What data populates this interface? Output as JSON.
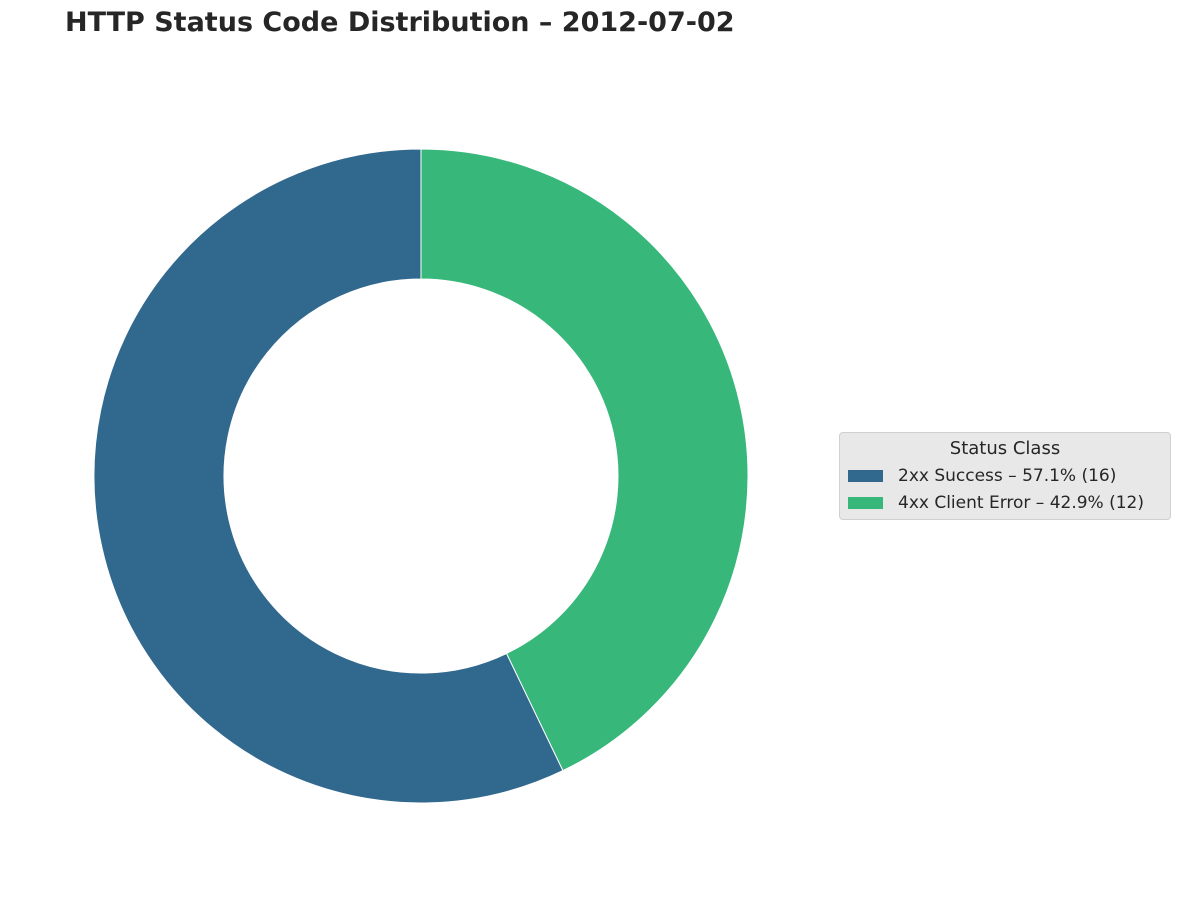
{
  "chart_data": {
    "type": "pie",
    "subtype": "donut",
    "title": "HTTP Status Code Distribution – 2012-07-02",
    "legend_title": "Status Class",
    "legend_position": "right",
    "start_angle": "top",
    "direction": "clockwise",
    "slices": [
      {
        "name": "4xx Client Error",
        "value": 12,
        "percent": 42.9,
        "color": "#37b779",
        "legend_label": "4xx Client Error – 42.9% (12)"
      },
      {
        "name": "2xx Success",
        "value": 16,
        "percent": 57.1,
        "color": "#31688e",
        "legend_label": "2xx Success – 57.1% (16)"
      }
    ],
    "legend_order": [
      "2xx Success",
      "4xx Client Error"
    ]
  }
}
